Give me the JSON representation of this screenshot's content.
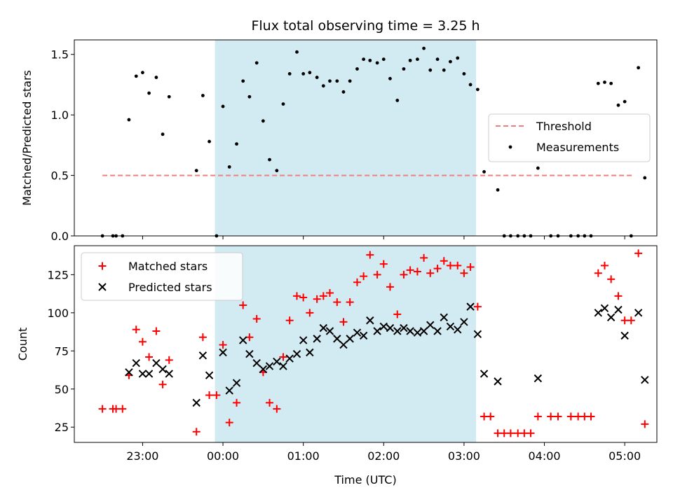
{
  "chart_data": [
    {
      "type": "scatter",
      "title": "Flux total observing time = 3.25 h",
      "ylabel": "Matched/Predicted stars",
      "xlabel": "",
      "ylim": [
        0,
        1.62
      ],
      "yticks": [
        0.0,
        0.5,
        1.0,
        1.5
      ],
      "ytick_labels": [
        "0.0",
        "0.5",
        "1.0",
        "1.5"
      ],
      "xlim_hours": [
        -1.85,
        5.4
      ],
      "highlight_span_hours": [
        -0.1,
        3.15
      ],
      "highlight_color": "#add8e6",
      "threshold": {
        "name": "Threshold",
        "y": 0.5,
        "x_range_hours": [
          -1.5,
          5.1
        ],
        "color": "#f08080",
        "style": "dashed"
      },
      "legend": {
        "placement": "center-right",
        "entries": [
          "Threshold",
          "Measurements"
        ]
      },
      "series": [
        {
          "name": "Measurements",
          "color": "#000000",
          "marker": "dot",
          "points": [
            [
              -1.5,
              0.0
            ],
            [
              -1.37,
              0.0
            ],
            [
              -1.33,
              0.0
            ],
            [
              -1.25,
              0.0
            ],
            [
              -1.17,
              0.96
            ],
            [
              -1.08,
              1.32
            ],
            [
              -1.0,
              1.35
            ],
            [
              -0.92,
              1.18
            ],
            [
              -0.83,
              1.31
            ],
            [
              -0.75,
              0.84
            ],
            [
              -0.67,
              1.15
            ],
            [
              -0.33,
              0.54
            ],
            [
              -0.25,
              1.16
            ],
            [
              -0.17,
              0.78
            ],
            [
              -0.08,
              0.0
            ],
            [
              0.0,
              1.07
            ],
            [
              0.08,
              0.57
            ],
            [
              0.17,
              0.76
            ],
            [
              0.25,
              1.28
            ],
            [
              0.33,
              1.15
            ],
            [
              0.42,
              1.43
            ],
            [
              0.5,
              0.95
            ],
            [
              0.58,
              0.63
            ],
            [
              0.67,
              0.54
            ],
            [
              0.75,
              1.09
            ],
            [
              0.83,
              1.34
            ],
            [
              0.92,
              1.52
            ],
            [
              1.0,
              1.34
            ],
            [
              1.08,
              1.35
            ],
            [
              1.17,
              1.31
            ],
            [
              1.25,
              1.24
            ],
            [
              1.33,
              1.28
            ],
            [
              1.42,
              1.28
            ],
            [
              1.5,
              1.19
            ],
            [
              1.58,
              1.28
            ],
            [
              1.67,
              1.38
            ],
            [
              1.75,
              1.46
            ],
            [
              1.83,
              1.45
            ],
            [
              1.92,
              1.43
            ],
            [
              2.0,
              1.46
            ],
            [
              2.08,
              1.3
            ],
            [
              2.17,
              1.12
            ],
            [
              2.25,
              1.38
            ],
            [
              2.33,
              1.45
            ],
            [
              2.42,
              1.46
            ],
            [
              2.5,
              1.55
            ],
            [
              2.58,
              1.37
            ],
            [
              2.67,
              1.46
            ],
            [
              2.75,
              1.37
            ],
            [
              2.83,
              1.44
            ],
            [
              2.92,
              1.47
            ],
            [
              3.0,
              1.34
            ],
            [
              3.08,
              1.25
            ],
            [
              3.17,
              1.21
            ],
            [
              3.25,
              0.53
            ],
            [
              3.42,
              0.38
            ],
            [
              3.5,
              0.0
            ],
            [
              3.58,
              0.0
            ],
            [
              3.67,
              0.0
            ],
            [
              3.75,
              0.0
            ],
            [
              3.83,
              0.0
            ],
            [
              3.92,
              0.56
            ],
            [
              4.08,
              0.0
            ],
            [
              4.17,
              0.0
            ],
            [
              4.33,
              0.0
            ],
            [
              4.42,
              0.0
            ],
            [
              4.5,
              0.0
            ],
            [
              4.58,
              0.0
            ],
            [
              4.67,
              1.26
            ],
            [
              4.75,
              1.27
            ],
            [
              4.83,
              1.26
            ],
            [
              4.92,
              1.08
            ],
            [
              5.0,
              1.11
            ],
            [
              5.08,
              0.0
            ],
            [
              5.17,
              1.39
            ],
            [
              5.25,
              0.48
            ]
          ]
        }
      ]
    },
    {
      "type": "scatter",
      "title": "",
      "ylabel": "Count",
      "xlabel": "Time (UTC)",
      "ylim": [
        15,
        144
      ],
      "yticks": [
        25,
        50,
        75,
        100,
        125
      ],
      "ytick_labels": [
        "25",
        "50",
        "75",
        "100",
        "125"
      ],
      "xlim_hours": [
        -1.85,
        5.4
      ],
      "xticks_hours": [
        -1,
        0,
        1,
        2,
        3,
        4,
        5
      ],
      "xtick_labels": [
        "23:00",
        "00:00",
        "01:00",
        "02:00",
        "03:00",
        "04:00",
        "05:00"
      ],
      "highlight_span_hours": [
        -0.1,
        3.15
      ],
      "highlight_color": "#add8e6",
      "legend": {
        "placement": "upper-left",
        "entries": [
          "Matched stars",
          "Predicted stars"
        ]
      },
      "series": [
        {
          "name": "Matched stars",
          "color": "#ff0000",
          "marker": "plus",
          "points": [
            [
              -1.5,
              37
            ],
            [
              -1.37,
              37
            ],
            [
              -1.33,
              37
            ],
            [
              -1.25,
              37
            ],
            [
              -1.17,
              59
            ],
            [
              -1.08,
              89
            ],
            [
              -1.0,
              81
            ],
            [
              -0.92,
              71
            ],
            [
              -0.83,
              88
            ],
            [
              -0.75,
              53
            ],
            [
              -0.67,
              69
            ],
            [
              -0.33,
              22
            ],
            [
              -0.25,
              84
            ],
            [
              -0.17,
              46
            ],
            [
              -0.08,
              46
            ],
            [
              0.0,
              79
            ],
            [
              0.08,
              28
            ],
            [
              0.17,
              41
            ],
            [
              0.25,
              105
            ],
            [
              0.33,
              84
            ],
            [
              0.42,
              96
            ],
            [
              0.5,
              61
            ],
            [
              0.58,
              41
            ],
            [
              0.67,
              37
            ],
            [
              0.75,
              71
            ],
            [
              0.83,
              95
            ],
            [
              0.92,
              111
            ],
            [
              1.0,
              110
            ],
            [
              1.08,
              100
            ],
            [
              1.17,
              109
            ],
            [
              1.25,
              111
            ],
            [
              1.33,
              113
            ],
            [
              1.42,
              107
            ],
            [
              1.5,
              94
            ],
            [
              1.58,
              107
            ],
            [
              1.67,
              120
            ],
            [
              1.75,
              124
            ],
            [
              1.83,
              138
            ],
            [
              1.92,
              125
            ],
            [
              2.0,
              132
            ],
            [
              2.08,
              117
            ],
            [
              2.17,
              99
            ],
            [
              2.25,
              125
            ],
            [
              2.33,
              128
            ],
            [
              2.42,
              127
            ],
            [
              2.5,
              136
            ],
            [
              2.58,
              126
            ],
            [
              2.67,
              129
            ],
            [
              2.75,
              134
            ],
            [
              2.83,
              131
            ],
            [
              2.92,
              131
            ],
            [
              3.0,
              126
            ],
            [
              3.08,
              130
            ],
            [
              3.17,
              104
            ],
            [
              3.25,
              32
            ],
            [
              3.33,
              32
            ],
            [
              3.42,
              21
            ],
            [
              3.5,
              21
            ],
            [
              3.58,
              21
            ],
            [
              3.67,
              21
            ],
            [
              3.75,
              21
            ],
            [
              3.83,
              21
            ],
            [
              3.92,
              32
            ],
            [
              4.08,
              32
            ],
            [
              4.17,
              32
            ],
            [
              4.33,
              32
            ],
            [
              4.42,
              32
            ],
            [
              4.5,
              32
            ],
            [
              4.58,
              32
            ],
            [
              4.67,
              126
            ],
            [
              4.75,
              131
            ],
            [
              4.83,
              122
            ],
            [
              4.92,
              111
            ],
            [
              5.0,
              95
            ],
            [
              5.08,
              95
            ],
            [
              5.17,
              139
            ],
            [
              5.25,
              27
            ]
          ]
        },
        {
          "name": "Predicted stars",
          "color": "#000000",
          "marker": "cross",
          "points": [
            [
              -1.17,
              61
            ],
            [
              -1.08,
              67
            ],
            [
              -1.0,
              60
            ],
            [
              -0.92,
              60
            ],
            [
              -0.83,
              67
            ],
            [
              -0.75,
              63
            ],
            [
              -0.67,
              60
            ],
            [
              -0.33,
              41
            ],
            [
              -0.25,
              72
            ],
            [
              -0.17,
              59
            ],
            [
              0.0,
              74
            ],
            [
              0.08,
              49
            ],
            [
              0.17,
              54
            ],
            [
              0.25,
              82
            ],
            [
              0.33,
              73
            ],
            [
              0.42,
              67
            ],
            [
              0.5,
              63
            ],
            [
              0.58,
              65
            ],
            [
              0.67,
              68
            ],
            [
              0.75,
              65
            ],
            [
              0.83,
              70
            ],
            [
              0.92,
              73
            ],
            [
              1.0,
              82
            ],
            [
              1.08,
              74
            ],
            [
              1.17,
              83
            ],
            [
              1.25,
              90
            ],
            [
              1.33,
              88
            ],
            [
              1.42,
              83
            ],
            [
              1.5,
              79
            ],
            [
              1.58,
              83
            ],
            [
              1.67,
              87
            ],
            [
              1.75,
              85
            ],
            [
              1.83,
              95
            ],
            [
              1.92,
              88
            ],
            [
              2.0,
              91
            ],
            [
              2.08,
              90
            ],
            [
              2.17,
              88
            ],
            [
              2.25,
              90
            ],
            [
              2.33,
              88
            ],
            [
              2.42,
              87
            ],
            [
              2.5,
              88
            ],
            [
              2.58,
              92
            ],
            [
              2.67,
              88
            ],
            [
              2.75,
              97
            ],
            [
              2.83,
              91
            ],
            [
              2.92,
              89
            ],
            [
              3.0,
              94
            ],
            [
              3.08,
              104
            ],
            [
              3.17,
              86
            ],
            [
              3.25,
              60
            ],
            [
              3.42,
              55
            ],
            [
              3.92,
              57
            ],
            [
              4.67,
              100
            ],
            [
              4.75,
              103
            ],
            [
              4.83,
              97
            ],
            [
              4.92,
              102
            ],
            [
              5.0,
              85
            ],
            [
              5.17,
              100
            ],
            [
              5.25,
              56
            ]
          ]
        }
      ]
    }
  ]
}
